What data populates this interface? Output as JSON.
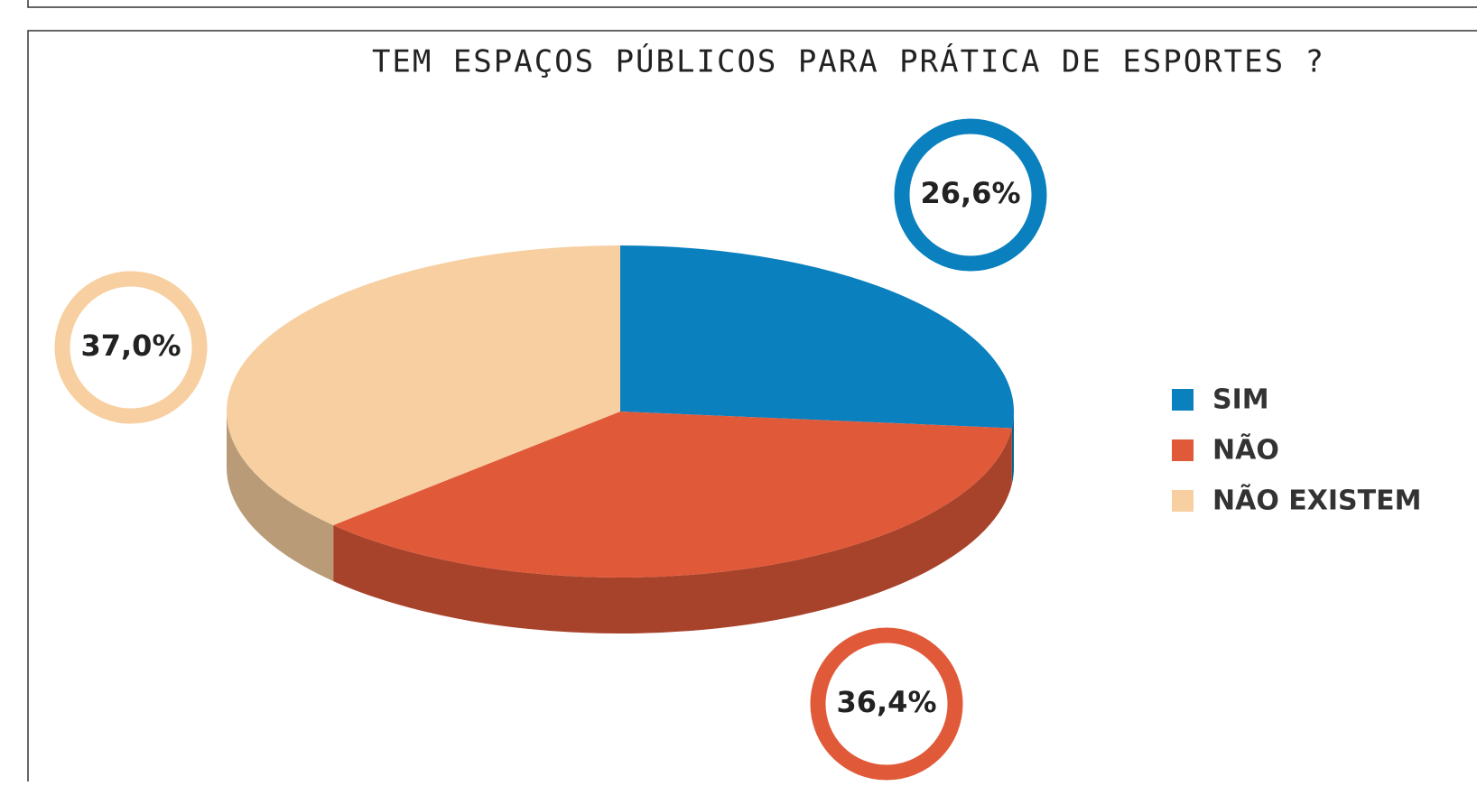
{
  "chart_data": {
    "type": "pie3d",
    "title": "TEM ESPAÇOS PÚBLICOS PARA PRÁTICA DE ESPORTES ?",
    "categories": [
      "SIM",
      "NÃO",
      "NÃO EXISTEM"
    ],
    "values": [
      26.6,
      36.4,
      37.0
    ],
    "value_labels": [
      "26,6%",
      "36,4%",
      "37,0%"
    ],
    "colors": [
      "#0a80bf",
      "#e05a3a",
      "#f7cfa0"
    ]
  }
}
